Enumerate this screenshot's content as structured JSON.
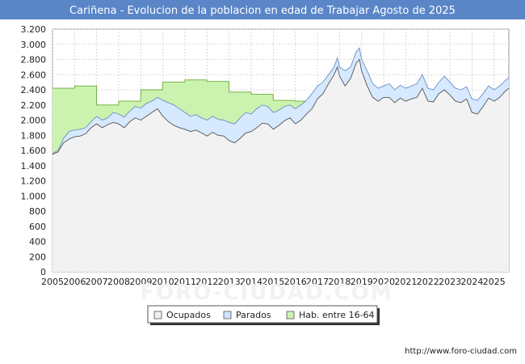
{
  "chart_data": {
    "type": "area",
    "title": "Cariñena - Evolucion de la poblacion en edad de Trabajar Agosto de 2025",
    "title_bar_color": "#5a86c8",
    "watermark": "FORO-CIUDAD.COM",
    "footer": "http://www.foro-ciudad.com",
    "x_range": [
      2005,
      2025.667
    ],
    "ylim": [
      0,
      3200
    ],
    "y_ticks": [
      0,
      200,
      400,
      600,
      800,
      1000,
      1200,
      1400,
      1600,
      1800,
      2000,
      2200,
      2400,
      2600,
      2800,
      3000,
      3200
    ],
    "y_tick_labels": [
      "0",
      "200",
      "400",
      "600",
      "800",
      "1.000",
      "1.200",
      "1.400",
      "1.600",
      "1.800",
      "2.000",
      "2.200",
      "2.400",
      "2.600",
      "2.800",
      "3.000",
      "3.200"
    ],
    "x_ticks": [
      2005,
      2006,
      2007,
      2008,
      2009,
      2010,
      2011,
      2012,
      2013,
      2014,
      2015,
      2016,
      2017,
      2018,
      2019,
      2020,
      2021,
      2022,
      2023,
      2024,
      2025
    ],
    "x_tick_labels": [
      "2005",
      "2006",
      "2007",
      "2008",
      "2009",
      "2010",
      "2011",
      "2012",
      "2013",
      "2014",
      "2015",
      "2016",
      "2017",
      "2018",
      "2019",
      "2020",
      "2021",
      "2022",
      "2023",
      "2024",
      "2025"
    ],
    "series": [
      {
        "name": "Hab. entre 16-64",
        "color_fill": "#ccf2b0",
        "color_line": "#66aa33",
        "points": [
          [
            2005.0,
            2420
          ],
          [
            2006.0,
            2420
          ],
          [
            2006.01,
            2450
          ],
          [
            2006.99,
            2450
          ],
          [
            2007.0,
            2200
          ],
          [
            2007.99,
            2200
          ],
          [
            2008.0,
            2250
          ],
          [
            2008.99,
            2250
          ],
          [
            2009.0,
            2400
          ],
          [
            2009.99,
            2400
          ],
          [
            2010.0,
            2500
          ],
          [
            2010.99,
            2500
          ],
          [
            2011.0,
            2530
          ],
          [
            2011.99,
            2530
          ],
          [
            2012.0,
            2510
          ],
          [
            2012.99,
            2510
          ],
          [
            2013.0,
            2370
          ],
          [
            2013.99,
            2370
          ],
          [
            2014.0,
            2340
          ],
          [
            2014.99,
            2340
          ],
          [
            2015.0,
            2260
          ],
          [
            2015.99,
            2260
          ],
          [
            2016.0,
            2250
          ],
          [
            2016.99,
            2250
          ]
        ]
      },
      {
        "name": "Parados",
        "color_fill": "#d6e9ff",
        "color_line": "#6a8fc0",
        "points": [
          [
            2005.0,
            1560
          ],
          [
            2005.25,
            1600
          ],
          [
            2005.5,
            1760
          ],
          [
            2005.75,
            1850
          ],
          [
            2006.0,
            1870
          ],
          [
            2006.25,
            1880
          ],
          [
            2006.5,
            1900
          ],
          [
            2006.75,
            1980
          ],
          [
            2007.0,
            2050
          ],
          [
            2007.25,
            2000
          ],
          [
            2007.5,
            2030
          ],
          [
            2007.75,
            2100
          ],
          [
            2008.0,
            2080
          ],
          [
            2008.25,
            2040
          ],
          [
            2008.5,
            2120
          ],
          [
            2008.75,
            2180
          ],
          [
            2009.0,
            2160
          ],
          [
            2009.25,
            2220
          ],
          [
            2009.5,
            2250
          ],
          [
            2009.75,
            2300
          ],
          [
            2010.0,
            2260
          ],
          [
            2010.25,
            2230
          ],
          [
            2010.5,
            2200
          ],
          [
            2010.75,
            2150
          ],
          [
            2011.0,
            2100
          ],
          [
            2011.25,
            2050
          ],
          [
            2011.5,
            2070
          ],
          [
            2011.75,
            2030
          ],
          [
            2012.0,
            2000
          ],
          [
            2012.25,
            2050
          ],
          [
            2012.5,
            2010
          ],
          [
            2012.75,
            2000
          ],
          [
            2013.0,
            1970
          ],
          [
            2013.25,
            1950
          ],
          [
            2013.5,
            2030
          ],
          [
            2013.75,
            2100
          ],
          [
            2014.0,
            2080
          ],
          [
            2014.25,
            2150
          ],
          [
            2014.5,
            2200
          ],
          [
            2014.75,
            2180
          ],
          [
            2015.0,
            2100
          ],
          [
            2015.25,
            2130
          ],
          [
            2015.5,
            2180
          ],
          [
            2015.75,
            2200
          ],
          [
            2016.0,
            2150
          ],
          [
            2016.25,
            2200
          ],
          [
            2016.5,
            2260
          ],
          [
            2016.75,
            2350
          ],
          [
            2017.0,
            2450
          ],
          [
            2017.25,
            2500
          ],
          [
            2017.5,
            2600
          ],
          [
            2017.75,
            2700
          ],
          [
            2017.9,
            2820
          ],
          [
            2018.0,
            2700
          ],
          [
            2018.25,
            2650
          ],
          [
            2018.5,
            2700
          ],
          [
            2018.75,
            2900
          ],
          [
            2018.9,
            2950
          ],
          [
            2019.0,
            2800
          ],
          [
            2019.25,
            2650
          ],
          [
            2019.5,
            2480
          ],
          [
            2019.75,
            2420
          ],
          [
            2020.0,
            2450
          ],
          [
            2020.25,
            2480
          ],
          [
            2020.5,
            2400
          ],
          [
            2020.75,
            2460
          ],
          [
            2021.0,
            2420
          ],
          [
            2021.25,
            2450
          ],
          [
            2021.5,
            2480
          ],
          [
            2021.75,
            2600
          ],
          [
            2022.0,
            2420
          ],
          [
            2022.25,
            2400
          ],
          [
            2022.5,
            2500
          ],
          [
            2022.75,
            2580
          ],
          [
            2023.0,
            2500
          ],
          [
            2023.25,
            2420
          ],
          [
            2023.5,
            2400
          ],
          [
            2023.75,
            2440
          ],
          [
            2024.0,
            2280
          ],
          [
            2024.25,
            2260
          ],
          [
            2024.5,
            2350
          ],
          [
            2024.75,
            2450
          ],
          [
            2025.0,
            2400
          ],
          [
            2025.25,
            2450
          ],
          [
            2025.5,
            2520
          ],
          [
            2025.667,
            2560
          ]
        ]
      },
      {
        "name": "Ocupados",
        "color_fill": "#f2f2f2",
        "color_line": "#555555",
        "points": [
          [
            2005.0,
            1550
          ],
          [
            2005.25,
            1580
          ],
          [
            2005.5,
            1700
          ],
          [
            2005.75,
            1750
          ],
          [
            2006.0,
            1780
          ],
          [
            2006.25,
            1790
          ],
          [
            2006.5,
            1820
          ],
          [
            2006.75,
            1900
          ],
          [
            2007.0,
            1950
          ],
          [
            2007.25,
            1900
          ],
          [
            2007.5,
            1940
          ],
          [
            2007.75,
            1970
          ],
          [
            2008.0,
            1950
          ],
          [
            2008.25,
            1900
          ],
          [
            2008.5,
            1980
          ],
          [
            2008.75,
            2030
          ],
          [
            2009.0,
            2000
          ],
          [
            2009.25,
            2050
          ],
          [
            2009.5,
            2100
          ],
          [
            2009.75,
            2150
          ],
          [
            2010.0,
            2050
          ],
          [
            2010.25,
            1980
          ],
          [
            2010.5,
            1930
          ],
          [
            2010.75,
            1900
          ],
          [
            2011.0,
            1880
          ],
          [
            2011.25,
            1850
          ],
          [
            2011.5,
            1870
          ],
          [
            2011.75,
            1830
          ],
          [
            2012.0,
            1790
          ],
          [
            2012.25,
            1840
          ],
          [
            2012.5,
            1800
          ],
          [
            2012.75,
            1790
          ],
          [
            2013.0,
            1730
          ],
          [
            2013.25,
            1700
          ],
          [
            2013.5,
            1760
          ],
          [
            2013.75,
            1830
          ],
          [
            2014.0,
            1850
          ],
          [
            2014.25,
            1900
          ],
          [
            2014.5,
            1960
          ],
          [
            2014.75,
            1950
          ],
          [
            2015.0,
            1880
          ],
          [
            2015.25,
            1930
          ],
          [
            2015.5,
            1990
          ],
          [
            2015.75,
            2030
          ],
          [
            2016.0,
            1950
          ],
          [
            2016.25,
            2000
          ],
          [
            2016.5,
            2080
          ],
          [
            2016.75,
            2150
          ],
          [
            2017.0,
            2280
          ],
          [
            2017.25,
            2350
          ],
          [
            2017.5,
            2480
          ],
          [
            2017.75,
            2600
          ],
          [
            2017.9,
            2700
          ],
          [
            2018.0,
            2580
          ],
          [
            2018.25,
            2450
          ],
          [
            2018.5,
            2550
          ],
          [
            2018.75,
            2750
          ],
          [
            2018.9,
            2800
          ],
          [
            2019.0,
            2650
          ],
          [
            2019.25,
            2450
          ],
          [
            2019.5,
            2300
          ],
          [
            2019.75,
            2250
          ],
          [
            2020.0,
            2300
          ],
          [
            2020.25,
            2300
          ],
          [
            2020.5,
            2230
          ],
          [
            2020.75,
            2290
          ],
          [
            2021.0,
            2250
          ],
          [
            2021.25,
            2280
          ],
          [
            2021.5,
            2300
          ],
          [
            2021.75,
            2420
          ],
          [
            2022.0,
            2250
          ],
          [
            2022.25,
            2240
          ],
          [
            2022.5,
            2350
          ],
          [
            2022.75,
            2400
          ],
          [
            2023.0,
            2330
          ],
          [
            2023.25,
            2250
          ],
          [
            2023.5,
            2230
          ],
          [
            2023.75,
            2280
          ],
          [
            2024.0,
            2100
          ],
          [
            2024.25,
            2080
          ],
          [
            2024.5,
            2180
          ],
          [
            2024.75,
            2290
          ],
          [
            2025.0,
            2250
          ],
          [
            2025.25,
            2300
          ],
          [
            2025.5,
            2380
          ],
          [
            2025.667,
            2420
          ]
        ]
      }
    ],
    "legend": [
      {
        "label": "Ocupados",
        "color": "#eeeeee"
      },
      {
        "label": "Parados",
        "color": "#cfe4ff"
      },
      {
        "label": "Hab. entre 16-64",
        "color": "#ccf2b0"
      }
    ],
    "legend_position": "bottom-center",
    "grid": true
  }
}
